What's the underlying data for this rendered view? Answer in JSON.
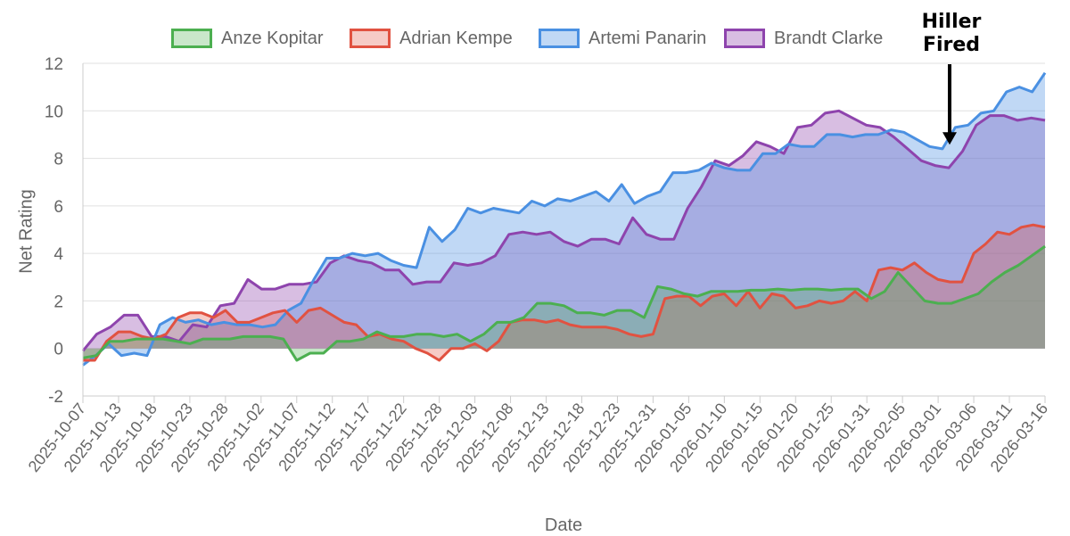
{
  "chart_data": {
    "type": "area",
    "xlabel": "Date",
    "ylabel": "Net Rating",
    "ylim": [
      -2,
      12
    ],
    "yticks": [
      -2,
      0,
      2,
      4,
      6,
      8,
      10,
      12
    ],
    "grid": true,
    "legend_position": "top",
    "x_tick_labels": [
      "2025-10-07",
      "2025-10-13",
      "2025-10-18",
      "2025-10-23",
      "2025-10-28",
      "2025-11-02",
      "2025-11-07",
      "2025-11-12",
      "2025-11-17",
      "2025-11-22",
      "2025-11-28",
      "2025-12-03",
      "2025-12-08",
      "2025-12-13",
      "2025-12-18",
      "2025-12-23",
      "2025-12-31",
      "2026-01-05",
      "2026-01-10",
      "2026-01-15",
      "2026-01-20",
      "2026-01-25",
      "2026-01-31",
      "2026-02-05",
      "2026-03-01",
      "2026-03-06",
      "2026-03-11",
      "2026-03-16"
    ],
    "series": [
      {
        "name": "Anze Kopitar",
        "color": "#4caf50",
        "fill": "rgba(76,175,80,0.3)",
        "values": [
          -0.4,
          -0.3,
          0.3,
          0.3,
          0.4,
          0.4,
          0.4,
          0.3,
          0.2,
          0.4,
          0.4,
          0.4,
          0.5,
          0.5,
          0.5,
          0.4,
          -0.5,
          -0.2,
          -0.2,
          0.3,
          0.3,
          0.4,
          0.7,
          0.5,
          0.5,
          0.6,
          0.6,
          0.5,
          0.6,
          0.3,
          0.6,
          1.1,
          1.1,
          1.3,
          1.9,
          1.9,
          1.8,
          1.5,
          1.5,
          1.4,
          1.6,
          1.6,
          1.3,
          2.6,
          2.5,
          2.3,
          2.2,
          2.4,
          2.4,
          2.4,
          2.45,
          2.45,
          2.5,
          2.45,
          2.5,
          2.5,
          2.45,
          2.5,
          2.5,
          2.1,
          2.4,
          3.2,
          2.6,
          2.0,
          1.9,
          1.9,
          2.1,
          2.3,
          2.8,
          3.2,
          3.5,
          3.9,
          4.3
        ]
      },
      {
        "name": "Adrian Kempe",
        "color": "#e15241",
        "fill": "rgba(225,82,65,0.3)",
        "values": [
          -0.5,
          -0.5,
          0.3,
          0.7,
          0.7,
          0.5,
          0.4,
          0.6,
          1.3,
          1.5,
          1.5,
          1.3,
          1.6,
          1.1,
          1.1,
          1.3,
          1.5,
          1.6,
          1.1,
          1.6,
          1.7,
          1.4,
          1.1,
          1.0,
          0.5,
          0.6,
          0.4,
          0.3,
          0.0,
          -0.2,
          -0.5,
          0.0,
          0.0,
          0.2,
          -0.1,
          0.3,
          1.1,
          1.2,
          1.2,
          1.1,
          1.2,
          1.0,
          0.9,
          0.9,
          0.9,
          0.8,
          0.6,
          0.5,
          0.6,
          2.1,
          2.2,
          2.2,
          1.8,
          2.2,
          2.3,
          1.8,
          2.4,
          1.7,
          2.3,
          2.2,
          1.7,
          1.8,
          2.0,
          1.9,
          2.0,
          2.4,
          2.0,
          3.3,
          3.4,
          3.3,
          3.6,
          3.2,
          2.9,
          2.8,
          2.8,
          4.0,
          4.4,
          4.9,
          4.8,
          5.1,
          5.2,
          5.1
        ]
      },
      {
        "name": "Artemi Panarin",
        "color": "#4a90e2",
        "fill": "rgba(74,144,226,0.35)",
        "values": [
          -0.7,
          -0.3,
          0.2,
          -0.3,
          -0.2,
          -0.3,
          1.0,
          1.3,
          1.1,
          1.2,
          1.0,
          1.1,
          1.0,
          1.0,
          0.9,
          1.0,
          1.6,
          1.9,
          2.9,
          3.8,
          3.8,
          4.0,
          3.9,
          4.0,
          3.7,
          3.5,
          3.4,
          5.1,
          4.5,
          5.0,
          5.9,
          5.7,
          5.9,
          5.8,
          5.7,
          6.2,
          6.0,
          6.3,
          6.2,
          6.4,
          6.6,
          6.2,
          6.9,
          6.1,
          6.4,
          6.6,
          7.4,
          7.4,
          7.5,
          7.8,
          7.6,
          7.5,
          7.5,
          8.2,
          8.2,
          8.6,
          8.5,
          8.5,
          9.0,
          9.0,
          8.9,
          9.0,
          9.0,
          9.2,
          9.1,
          8.8,
          8.5,
          8.4,
          9.3,
          9.4,
          9.9,
          10.0,
          10.8,
          11.0,
          10.8,
          11.6
        ]
      },
      {
        "name": "Brandt Clarke",
        "color": "#8e44ad",
        "fill": "rgba(142,68,173,0.35)",
        "values": [
          -0.1,
          0.6,
          0.9,
          1.4,
          1.4,
          0.5,
          0.5,
          0.3,
          1.0,
          0.9,
          1.8,
          1.9,
          2.9,
          2.5,
          2.5,
          2.7,
          2.7,
          2.8,
          3.6,
          3.9,
          3.7,
          3.6,
          3.3,
          3.3,
          2.7,
          2.8,
          2.8,
          3.6,
          3.5,
          3.6,
          3.9,
          4.8,
          4.9,
          4.8,
          4.9,
          4.5,
          4.3,
          4.6,
          4.6,
          4.4,
          5.5,
          4.8,
          4.6,
          4.6,
          5.9,
          6.8,
          7.9,
          7.7,
          8.1,
          8.7,
          8.5,
          8.2,
          9.3,
          9.4,
          9.9,
          10.0,
          9.7,
          9.4,
          9.3,
          8.9,
          8.4,
          7.9,
          7.7,
          7.6,
          8.3,
          9.4,
          9.8,
          9.8,
          9.6,
          9.7,
          9.6
        ]
      }
    ],
    "annotations": [
      {
        "text_line1": "Hiller",
        "text_line2": "Fired",
        "x": "2026-03-02",
        "arrow_target_y": 8.5
      }
    ]
  }
}
